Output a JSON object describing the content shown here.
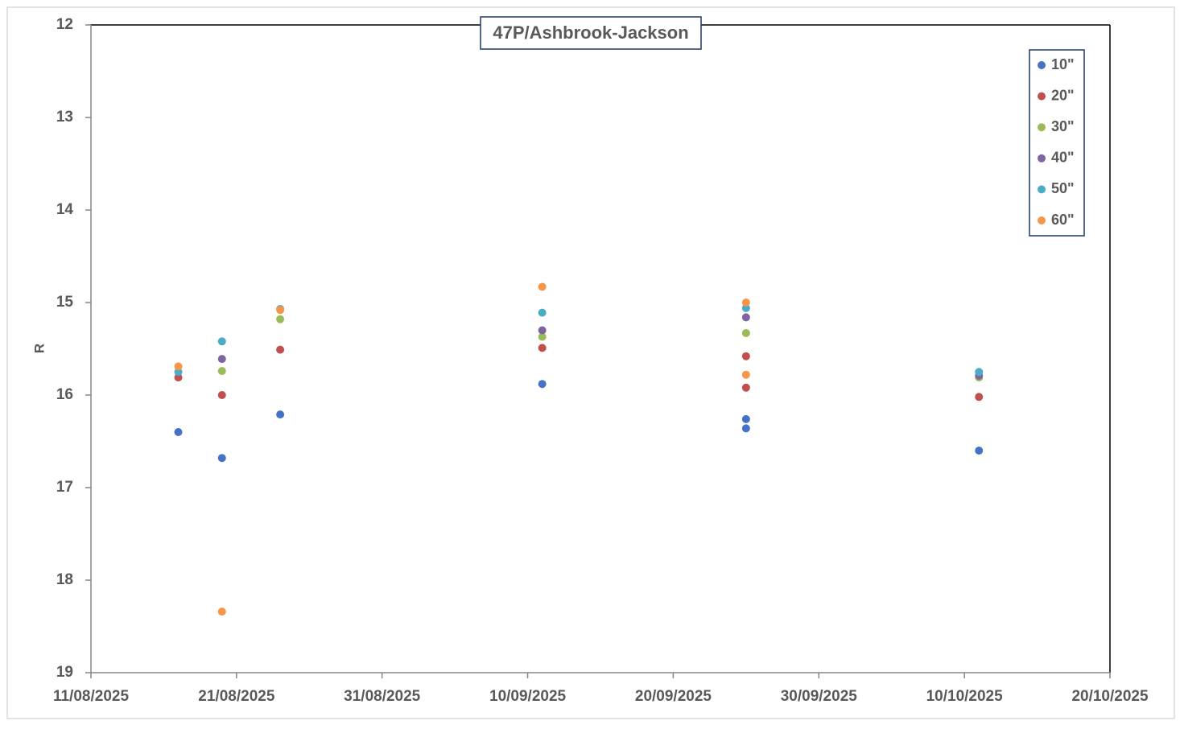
{
  "chart_data": {
    "type": "scatter",
    "title": "47P/Ashbrook-Jackson",
    "y_label": "R",
    "xlim": [
      "2025-08-11",
      "2025-10-20"
    ],
    "xticks": [
      {
        "value": "2025-08-11",
        "label": "11/08/2025"
      },
      {
        "value": "2025-08-21",
        "label": "21/08/2025"
      },
      {
        "value": "2025-08-31",
        "label": "31/08/2025"
      },
      {
        "value": "2025-09-10",
        "label": "10/09/2025"
      },
      {
        "value": "2025-09-20",
        "label": "20/09/2025"
      },
      {
        "value": "2025-09-30",
        "label": "30/09/2025"
      },
      {
        "value": "2025-10-10",
        "label": "10/10/2025"
      },
      {
        "value": "2025-10-20",
        "label": "20/10/2025"
      }
    ],
    "ylim": [
      12,
      19
    ],
    "yticks": [
      12,
      13,
      14,
      15,
      16,
      17,
      18,
      19
    ],
    "y_inverted": true,
    "legend": "top-right",
    "series": [
      {
        "name": "10\"",
        "color": "#4472c4",
        "x": [
          "2025-08-17",
          "2025-08-20",
          "2025-08-24",
          "2025-09-11",
          "2025-09-25",
          "2025-09-25",
          "2025-10-11"
        ],
        "values": [
          16.4,
          16.68,
          16.21,
          15.88,
          16.26,
          16.36,
          16.6
        ]
      },
      {
        "name": "20\"",
        "color": "#c0504d",
        "x": [
          "2025-08-17",
          "2025-08-20",
          "2025-08-24",
          "2025-09-11",
          "2025-09-25",
          "2025-09-25",
          "2025-10-11"
        ],
        "values": [
          15.81,
          16.0,
          15.51,
          15.49,
          15.58,
          15.92,
          16.02
        ]
      },
      {
        "name": "30\"",
        "color": "#9bbb59",
        "x": [
          "2025-08-20",
          "2025-08-24",
          "2025-09-11",
          "2025-09-25",
          "2025-10-11"
        ],
        "values": [
          15.74,
          15.18,
          15.37,
          15.33,
          15.81
        ]
      },
      {
        "name": "40\"",
        "color": "#8064a2",
        "x": [
          "2025-08-20",
          "2025-09-11",
          "2025-09-25",
          "2025-10-11"
        ],
        "values": [
          15.61,
          15.3,
          15.16,
          15.79
        ]
      },
      {
        "name": "50\"",
        "color": "#4bacc6",
        "x": [
          "2025-08-17",
          "2025-08-20",
          "2025-08-24",
          "2025-09-11",
          "2025-09-25",
          "2025-10-11"
        ],
        "values": [
          15.75,
          15.42,
          15.07,
          15.11,
          15.06,
          15.75
        ]
      },
      {
        "name": "60\"",
        "color": "#f79646",
        "x": [
          "2025-08-17",
          "2025-08-20",
          "2025-08-24",
          "2025-09-11",
          "2025-09-25",
          "2025-09-25"
        ],
        "values": [
          15.69,
          18.34,
          15.08,
          14.83,
          15.0,
          15.78
        ]
      }
    ]
  }
}
